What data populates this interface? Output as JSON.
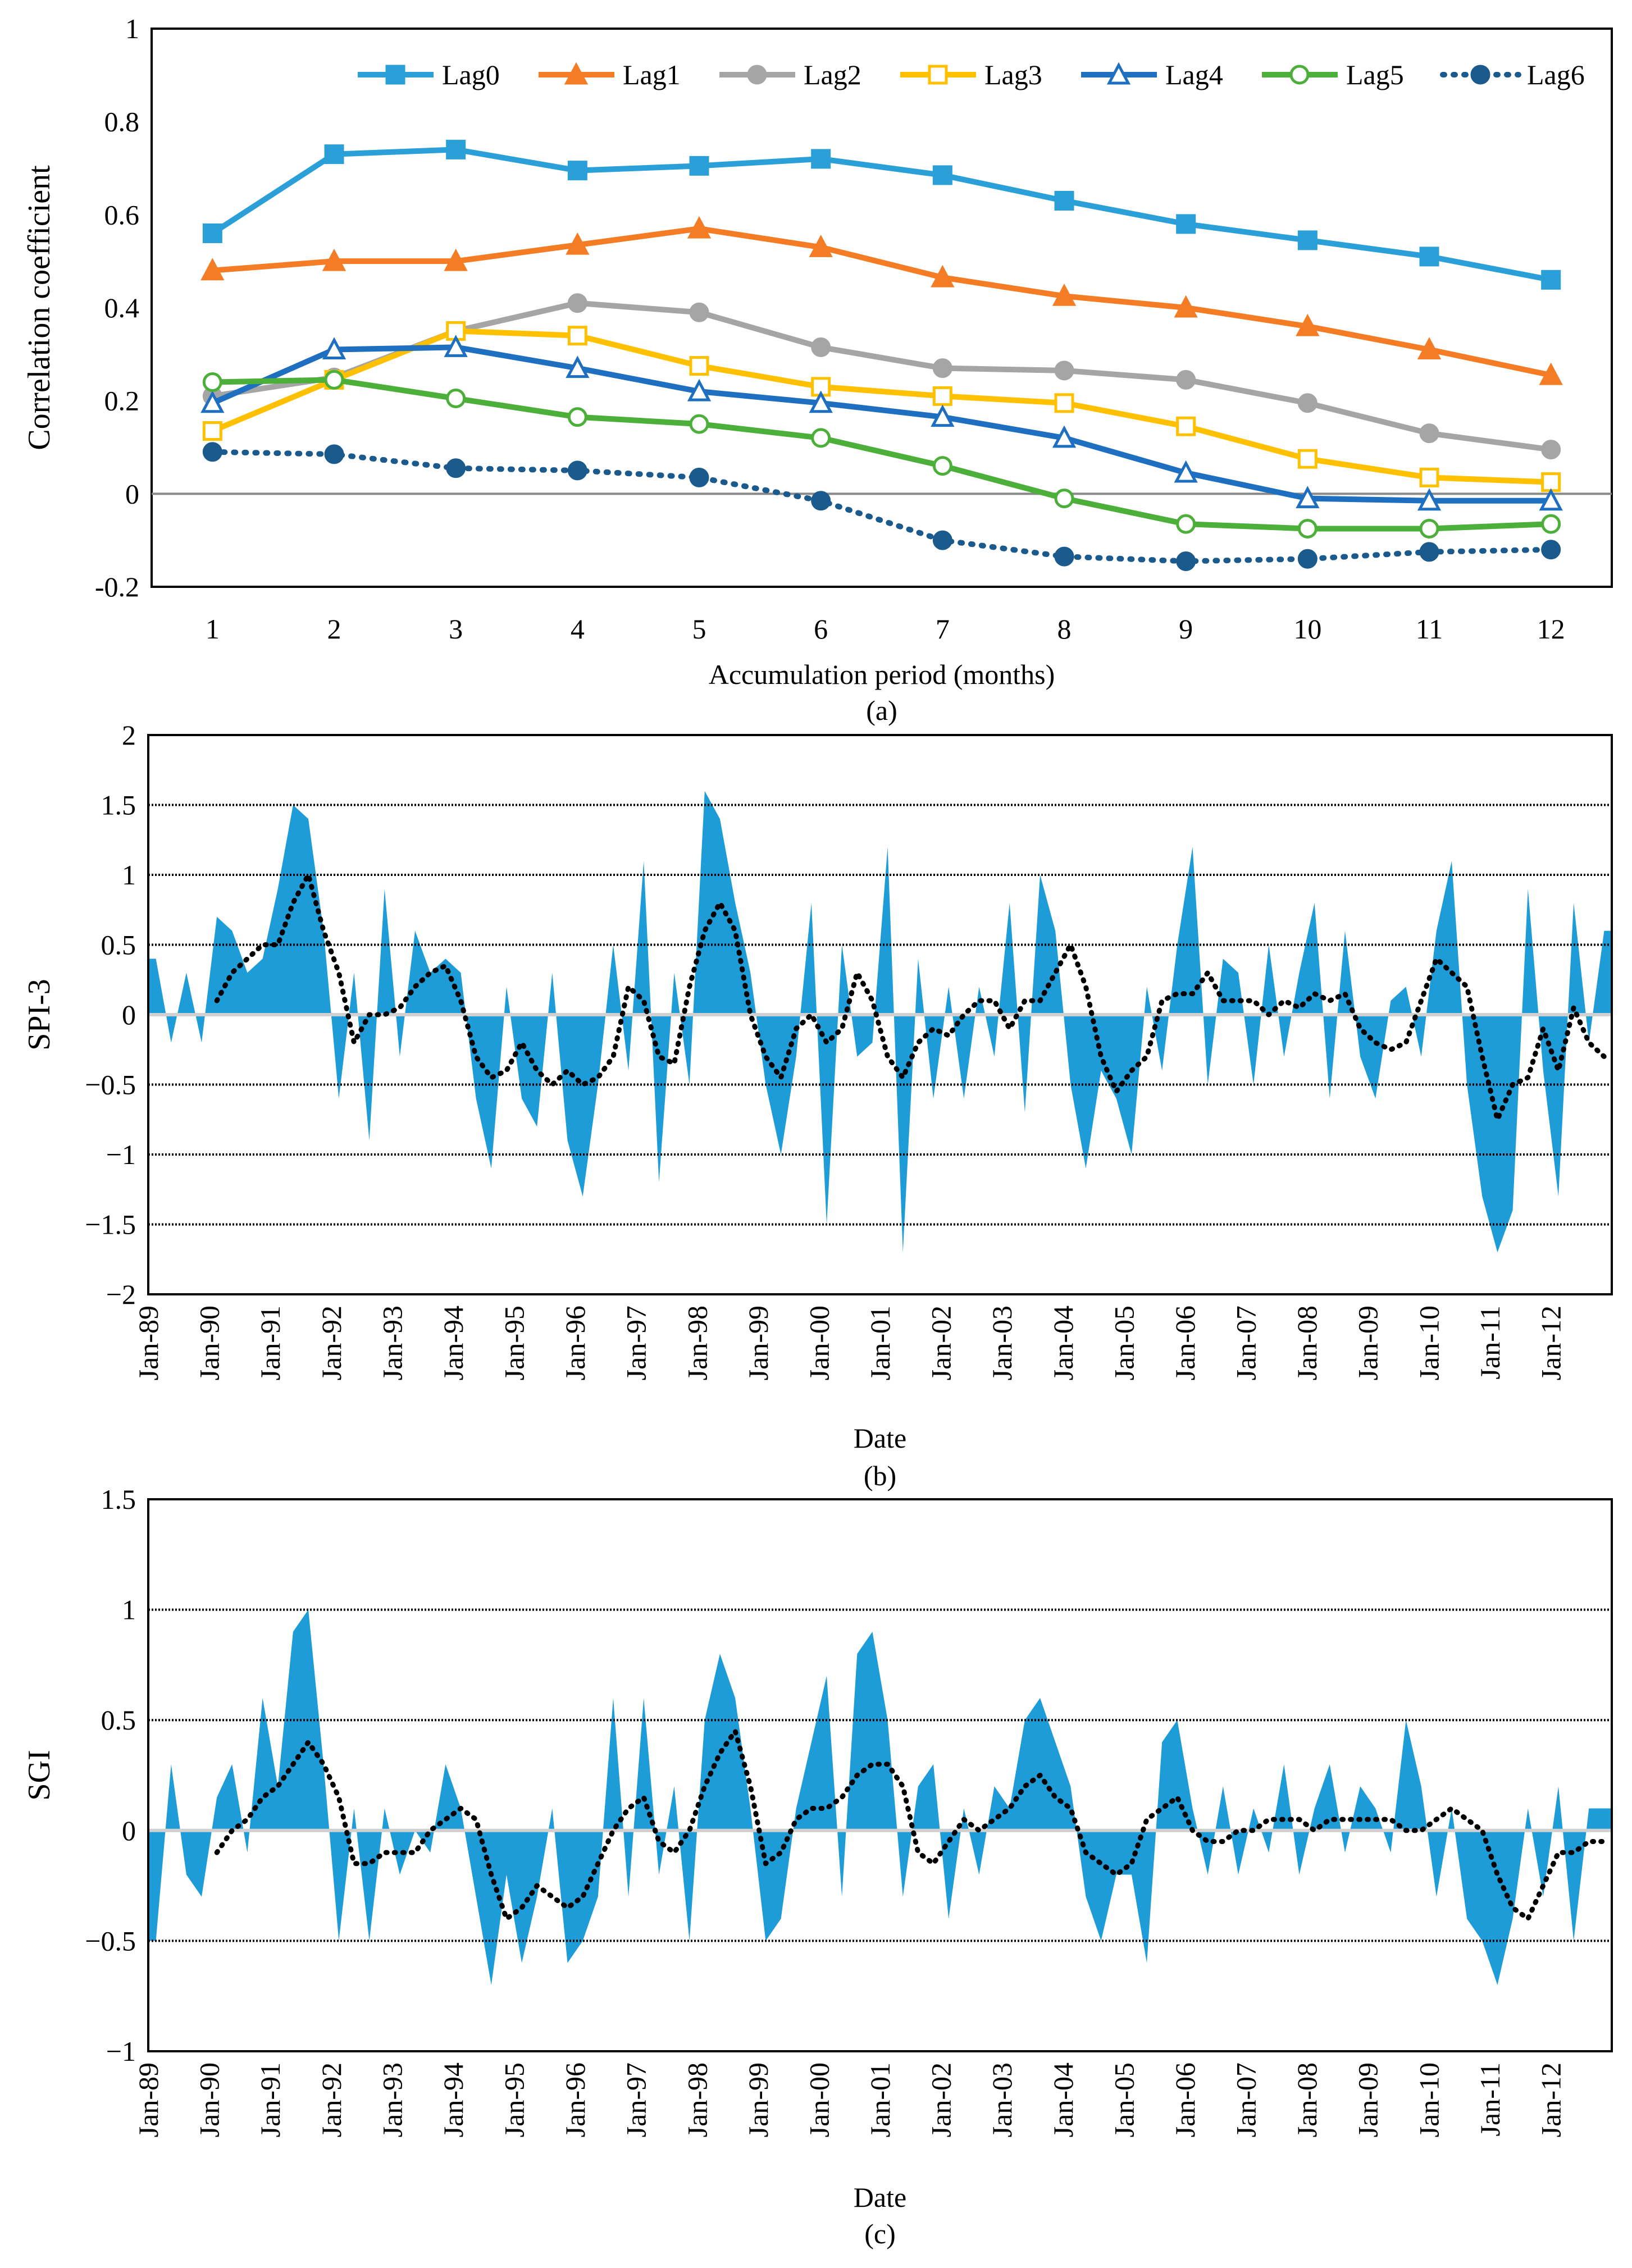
{
  "chart_data": [
    {
      "type": "line",
      "caption": "(a)",
      "xlabel": "Accumulation period (months)",
      "ylabel": "Correlation coefficient",
      "ylim": [
        -0.2,
        1
      ],
      "yticks": [
        "-0.2",
        "0",
        "0.2",
        "0.4",
        "0.6",
        "0.8",
        "1"
      ],
      "x": [
        "1",
        "2",
        "3",
        "4",
        "5",
        "6",
        "7",
        "8",
        "9",
        "10",
        "11",
        "12"
      ],
      "legend_position": "top",
      "series": [
        {
          "name": "Lag0",
          "color": "#2A9FD8",
          "marker": "square-filled",
          "dash": "solid",
          "values": [
            0.56,
            0.73,
            0.74,
            0.695,
            0.705,
            0.72,
            0.685,
            0.63,
            0.58,
            0.545,
            0.51,
            0.46
          ]
        },
        {
          "name": "Lag1",
          "color": "#F47C25",
          "marker": "triangle-filled",
          "dash": "solid",
          "values": [
            0.48,
            0.5,
            0.5,
            0.535,
            0.57,
            0.53,
            0.465,
            0.425,
            0.4,
            0.36,
            0.31,
            0.255
          ]
        },
        {
          "name": "Lag2",
          "color": "#A5A5A5",
          "marker": "circle-filled",
          "dash": "solid",
          "values": [
            0.21,
            0.25,
            0.35,
            0.41,
            0.39,
            0.315,
            0.27,
            0.265,
            0.245,
            0.195,
            0.13,
            0.095
          ]
        },
        {
          "name": "Lag3",
          "color": "#FFC000",
          "marker": "square-open",
          "dash": "solid",
          "values": [
            0.135,
            0.245,
            0.35,
            0.34,
            0.275,
            0.23,
            0.21,
            0.195,
            0.145,
            0.075,
            0.035,
            0.025
          ]
        },
        {
          "name": "Lag4",
          "color": "#1F6FC0",
          "marker": "triangle-open",
          "dash": "solid",
          "values": [
            0.195,
            0.31,
            0.315,
            0.27,
            0.22,
            0.195,
            0.165,
            0.12,
            0.045,
            -0.01,
            -0.015,
            -0.015
          ]
        },
        {
          "name": "Lag5",
          "color": "#4CAF3A",
          "marker": "circle-open",
          "dash": "solid",
          "values": [
            0.24,
            0.245,
            0.205,
            0.165,
            0.15,
            0.12,
            0.06,
            -0.01,
            -0.065,
            -0.075,
            -0.075,
            -0.065
          ]
        },
        {
          "name": "Lag6",
          "color": "#1A5A8C",
          "marker": "circle-filled",
          "dash": "dotted",
          "values": [
            0.09,
            0.085,
            0.055,
            0.05,
            0.035,
            -0.015,
            -0.1,
            -0.135,
            -0.145,
            -0.14,
            -0.125,
            -0.12
          ]
        }
      ]
    },
    {
      "type": "area",
      "caption": "(b)",
      "xlabel": "Date",
      "ylabel": "SPI-3",
      "ylim": [
        -2,
        2
      ],
      "yticks": [
        "−2",
        "−1.5",
        "−1",
        "−0.5",
        "0",
        "0.5",
        "1",
        "1.5",
        "2"
      ],
      "gridlines": [
        -1.5,
        -1,
        -0.5,
        0.5,
        1,
        1.5
      ],
      "xticks": [
        "Jan-89",
        "Jan-90",
        "Jan-91",
        "Jan-92",
        "Jan-93",
        "Jan-94",
        "Jan-95",
        "Jan-96",
        "Jan-97",
        "Jan-98",
        "Jan-99",
        "Jan-00",
        "Jan-01",
        "Jan-02",
        "Jan-03",
        "Jan-04",
        "Jan-05",
        "Jan-06",
        "Jan-07",
        "Jan-08",
        "Jan-09",
        "Jan-10",
        "Jan-11",
        "Jan-12"
      ],
      "area_color": "#1E9CD8",
      "sampling": "quarterly, Jan-89 to Dec-12 (approx.)",
      "values": [
        0.4,
        -0.2,
        0.3,
        -0.2,
        0.7,
        0.6,
        0.3,
        0.4,
        0.9,
        1.5,
        1.4,
        0.6,
        -0.6,
        0.3,
        -0.9,
        0.9,
        -0.3,
        0.6,
        0.3,
        0.4,
        0.3,
        -0.6,
        -1.1,
        0.2,
        -0.6,
        -0.8,
        0.3,
        -0.9,
        -1.3,
        -0.5,
        0.5,
        -0.4,
        1.1,
        -1.2,
        0.3,
        -0.5,
        1.6,
        1.4,
        0.8,
        0.3,
        -0.5,
        -1.0,
        -0.3,
        0.8,
        -1.5,
        0.5,
        -0.3,
        -0.2,
        1.2,
        -1.7,
        0.4,
        -0.6,
        0.2,
        -0.6,
        0.2,
        -0.3,
        0.8,
        -0.7,
        1.0,
        0.6,
        -0.5,
        -1.1,
        -0.4,
        -0.6,
        -1.0,
        0.2,
        -0.4,
        0.5,
        1.2,
        -0.5,
        0.4,
        0.3,
        -0.5,
        0.5,
        -0.3,
        0.3,
        0.8,
        -0.6,
        0.6,
        -0.3,
        -0.6,
        0.1,
        0.2,
        -0.3,
        0.6,
        1.1,
        -0.5,
        -1.3,
        -1.7,
        -1.4,
        0.9,
        -0.4,
        -1.3,
        0.8,
        -0.2,
        0.6
      ],
      "moving_average": [
        0.1,
        0.3,
        0.4,
        0.5,
        0.5,
        0.8,
        1.0,
        0.6,
        0.3,
        -0.2,
        0.0,
        0.0,
        0.05,
        0.2,
        0.3,
        0.35,
        0.1,
        -0.3,
        -0.45,
        -0.4,
        -0.2,
        -0.4,
        -0.5,
        -0.4,
        -0.5,
        -0.45,
        -0.3,
        0.2,
        0.1,
        -0.3,
        -0.35,
        0.2,
        0.6,
        0.8,
        0.6,
        0.0,
        -0.3,
        -0.45,
        -0.1,
        0.0,
        -0.2,
        -0.1,
        0.3,
        0.1,
        -0.3,
        -0.45,
        -0.2,
        -0.1,
        -0.15,
        0.0,
        0.1,
        0.1,
        -0.1,
        0.1,
        0.1,
        0.3,
        0.5,
        0.2,
        -0.3,
        -0.55,
        -0.4,
        -0.3,
        0.1,
        0.15,
        0.15,
        0.3,
        0.1,
        0.1,
        0.1,
        0.0,
        0.1,
        0.05,
        0.15,
        0.1,
        0.15,
        -0.1,
        -0.2,
        -0.25,
        -0.2,
        0.1,
        0.4,
        0.3,
        0.2,
        -0.3,
        -0.75,
        -0.5,
        -0.45,
        -0.1,
        -0.4,
        0.05,
        -0.2,
        -0.3
      ]
    },
    {
      "type": "area",
      "caption": "(c)",
      "xlabel": "Date",
      "ylabel": "SGI",
      "ylim": [
        -1,
        1.5
      ],
      "yticks": [
        "−1",
        "−0.5",
        "0",
        "0.5",
        "1",
        "1.5"
      ],
      "gridlines": [
        -0.5,
        0.5,
        1
      ],
      "xticks": [
        "Jan-89",
        "Jan-90",
        "Jan-91",
        "Jan-92",
        "Jan-93",
        "Jan-94",
        "Jan-95",
        "Jan-96",
        "Jan-97",
        "Jan-98",
        "Jan-99",
        "Jan-00",
        "Jan-01",
        "Jan-02",
        "Jan-03",
        "Jan-04",
        "Jan-05",
        "Jan-06",
        "Jan-07",
        "Jan-08",
        "Jan-09",
        "Jan-10",
        "Jan-11",
        "Jan-12"
      ],
      "area_color": "#1E9CD8",
      "sampling": "quarterly, Jan-89 to Dec-12 (approx.)",
      "values": [
        -0.5,
        0.3,
        -0.2,
        -0.3,
        0.15,
        0.3,
        -0.1,
        0.6,
        0.2,
        0.9,
        1.0,
        0.3,
        -0.5,
        0.1,
        -0.5,
        0.1,
        -0.2,
        0.0,
        -0.1,
        0.3,
        0.1,
        -0.3,
        -0.7,
        -0.2,
        -0.6,
        -0.3,
        0.1,
        -0.6,
        -0.5,
        -0.3,
        0.6,
        -0.3,
        0.6,
        -0.2,
        0.2,
        -0.5,
        0.5,
        0.8,
        0.6,
        0.1,
        -0.5,
        -0.4,
        0.1,
        0.4,
        0.7,
        -0.3,
        0.8,
        0.9,
        0.5,
        -0.3,
        0.2,
        0.3,
        -0.4,
        0.1,
        -0.2,
        0.2,
        0.1,
        0.5,
        0.6,
        0.4,
        0.2,
        -0.3,
        -0.5,
        -0.2,
        -0.2,
        -0.6,
        0.4,
        0.5,
        0.1,
        -0.2,
        0.2,
        -0.2,
        0.1,
        -0.1,
        0.3,
        -0.2,
        0.1,
        0.3,
        -0.1,
        0.2,
        0.1,
        -0.1,
        0.5,
        0.2,
        -0.3,
        0.1,
        -0.4,
        -0.5,
        -0.7,
        -0.4,
        0.1,
        -0.3,
        0.2,
        -0.5,
        0.1,
        0.1
      ],
      "moving_average": [
        -0.1,
        0.0,
        0.05,
        0.15,
        0.2,
        0.3,
        0.4,
        0.3,
        0.15,
        -0.15,
        -0.15,
        -0.1,
        -0.1,
        -0.1,
        0.0,
        0.05,
        0.1,
        0.05,
        -0.2,
        -0.4,
        -0.35,
        -0.25,
        -0.3,
        -0.35,
        -0.3,
        -0.15,
        0.0,
        0.1,
        0.15,
        -0.05,
        -0.1,
        0.0,
        0.2,
        0.35,
        0.45,
        0.2,
        -0.15,
        -0.1,
        0.05,
        0.1,
        0.1,
        0.15,
        0.25,
        0.3,
        0.3,
        0.2,
        -0.1,
        -0.15,
        -0.05,
        0.05,
        0.0,
        0.05,
        0.1,
        0.2,
        0.25,
        0.15,
        0.1,
        -0.1,
        -0.15,
        -0.2,
        -0.15,
        0.05,
        0.1,
        0.15,
        0.0,
        -0.05,
        -0.05,
        0.0,
        0.0,
        0.05,
        0.05,
        0.05,
        0.0,
        0.05,
        0.05,
        0.05,
        0.05,
        0.05,
        0.0,
        0.0,
        0.05,
        0.1,
        0.05,
        0.0,
        -0.2,
        -0.35,
        -0.4,
        -0.25,
        -0.1,
        -0.1,
        -0.05,
        -0.05
      ]
    }
  ]
}
